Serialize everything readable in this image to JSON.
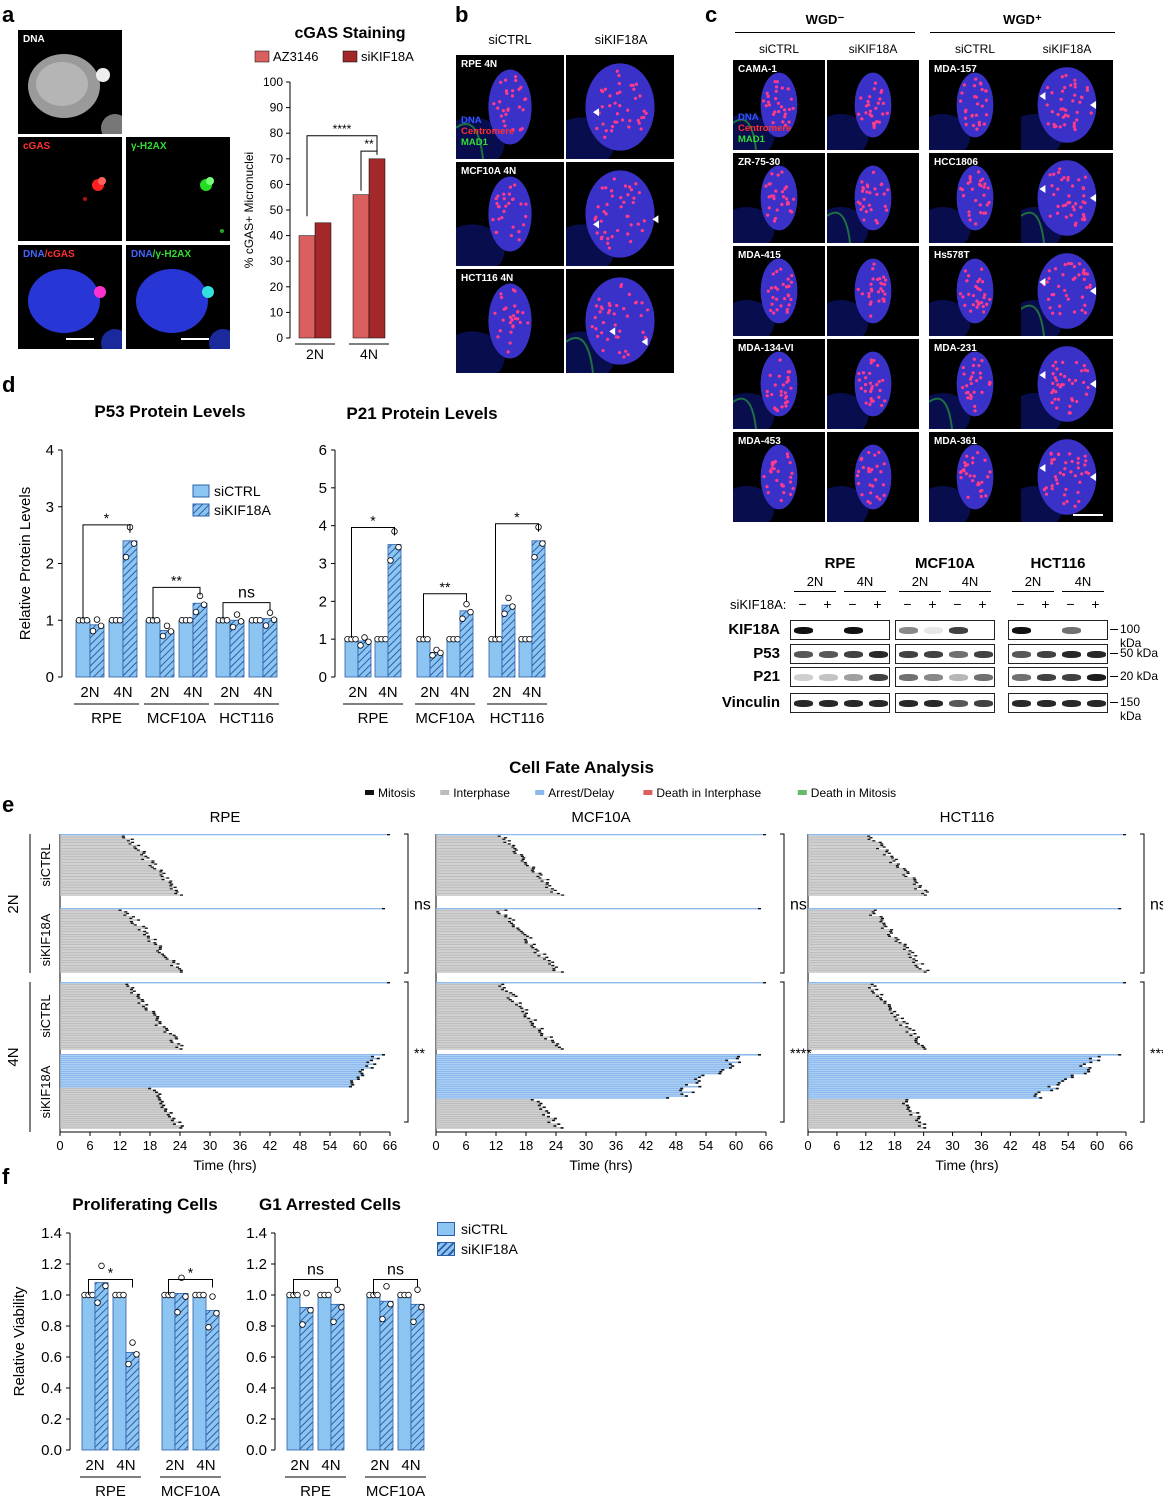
{
  "panel_letters": {
    "a": "a",
    "b": "b",
    "c": "c",
    "d": "d",
    "e": "e",
    "f": "f"
  },
  "panel_a": {
    "tiles": [
      {
        "label": "DNA",
        "color": "#ffffff"
      },
      {
        "label": "cGAS",
        "color": "#ff3030"
      },
      {
        "label": "γ-H2AX",
        "color": "#33dd33"
      },
      {
        "label_parts": [
          "DNA",
          "/cGAS"
        ],
        "colors": [
          "#3355ff",
          "#ff3030"
        ]
      },
      {
        "label_parts": [
          "DNA",
          "/γ-H2AX"
        ],
        "colors": [
          "#3355ff",
          "#33dd33"
        ]
      }
    ]
  },
  "panel_b": {
    "col_headers": [
      "siCTRL",
      "siKIF18A"
    ],
    "rows": [
      "RPE 4N",
      "MCF10A 4N",
      "HCT116 4N"
    ],
    "legend": [
      {
        "text": "DNA",
        "color": "#3355ff"
      },
      {
        "text": "Centromere",
        "color": "#ff3030"
      },
      {
        "text": "MAD1",
        "color": "#33dd33"
      }
    ]
  },
  "panel_c": {
    "group_headers": [
      "WGD⁻",
      "WGD⁺"
    ],
    "col_headers": [
      "siCTRL",
      "siKIF18A",
      "siCTRL",
      "siKIF18A"
    ],
    "rows_left": [
      "CAMA-1",
      "ZR-75-30",
      "MDA-415",
      "MDA-134-VI",
      "MDA-453"
    ],
    "rows_right": [
      "MDA-157",
      "HCC1806",
      "Hs578T",
      "MDA-231",
      "MDA-361"
    ],
    "legend": [
      {
        "text": "DNA",
        "color": "#3355ff"
      },
      {
        "text": "Centromere",
        "color": "#ff3030"
      },
      {
        "text": "MAD1",
        "color": "#33dd33"
      }
    ]
  },
  "chart_data": [
    {
      "id": "cgas",
      "type": "bar",
      "title": "cGAS Staining",
      "ylabel": "% cGAS+ Micronuclei",
      "categories": [
        "2N",
        "4N"
      ],
      "series": [
        {
          "name": "AZ3146",
          "values": [
            40,
            56
          ],
          "color": "#d9605e"
        },
        {
          "name": "siKIF18A",
          "values": [
            45,
            70
          ],
          "color": "#a3282a"
        }
      ],
      "ylim": [
        0,
        100
      ],
      "yticks": [
        0,
        10,
        20,
        30,
        40,
        50,
        60,
        70,
        80,
        90,
        100
      ],
      "significance": [
        "****",
        "**"
      ]
    },
    {
      "id": "p53",
      "type": "bar",
      "title": "P53 Protein Levels",
      "ylabel": "Relative Protein Levels",
      "groups": [
        "RPE",
        "MCF10A",
        "HCT116"
      ],
      "subcategories": [
        "2N",
        "4N"
      ],
      "series": [
        {
          "name": "siCTRL"
        },
        {
          "name": "siKIF18A"
        }
      ],
      "values": [
        [
          1,
          0.92,
          1,
          2.4
        ],
        [
          1,
          0.82,
          1,
          1.3
        ],
        [
          1,
          1.0,
          1,
          1.03
        ]
      ],
      "ylim": [
        0,
        4
      ],
      "yticks": [
        0,
        1,
        2,
        3,
        4
      ],
      "significance": [
        "*",
        "**",
        "ns"
      ]
    },
    {
      "id": "p21",
      "type": "bar",
      "title": "P21 Protein Levels",
      "groups": [
        "RPE",
        "MCF10A",
        "HCT116"
      ],
      "subcategories": [
        "2N",
        "4N"
      ],
      "series": [
        {
          "name": "siCTRL"
        },
        {
          "name": "siKIF18A"
        }
      ],
      "values": [
        [
          1,
          0.95,
          1,
          3.5
        ],
        [
          1,
          0.65,
          1,
          1.75
        ],
        [
          1,
          1.9,
          1,
          3.6
        ]
      ],
      "ylim": [
        0,
        6
      ],
      "yticks": [
        0,
        1,
        2,
        3,
        4,
        5,
        6
      ],
      "significance": [
        "*",
        "**",
        "*"
      ]
    },
    {
      "id": "cellfate",
      "type": "bar",
      "title": "Cell Fate Analysis",
      "legend": [
        {
          "name": "Mitosis",
          "color": "#111111"
        },
        {
          "name": "Interphase",
          "color": "#bdbdbd"
        },
        {
          "name": "Arrest/Delay",
          "color": "#8ab9ee"
        },
        {
          "name": "Death in Interphase",
          "color": "#de5d5d"
        },
        {
          "name": "Death in Mitosis",
          "color": "#66bb66"
        }
      ],
      "panels": [
        "RPE",
        "MCF10A",
        "HCT116"
      ],
      "row_groups": [
        "2N",
        "4N"
      ],
      "conditions": [
        "siCTRL",
        "siKIF18A"
      ],
      "xlabel": "Time (hrs)",
      "xticks": [
        0,
        6,
        12,
        18,
        24,
        30,
        36,
        42,
        48,
        54,
        60,
        66
      ],
      "significance_2N": [
        "ns",
        "ns",
        "ns"
      ],
      "significance_4N": [
        "**",
        "****",
        "****"
      ]
    },
    {
      "id": "prolif",
      "type": "bar",
      "title": "Proliferating Cells",
      "ylabel": "Relative Viability",
      "groups": [
        "RPE",
        "MCF10A"
      ],
      "subcategories": [
        "2N",
        "4N"
      ],
      "series": [
        {
          "name": "siCTRL"
        },
        {
          "name": "siKIF18A"
        }
      ],
      "values": [
        [
          1,
          1.08,
          1,
          0.63
        ],
        [
          1,
          1.01,
          1,
          0.9
        ]
      ],
      "ylim": [
        0,
        1.4
      ],
      "yticks": [
        "0.0",
        "0.2",
        "0.4",
        "0.6",
        "0.8",
        "1.0",
        "1.2",
        "1.4"
      ],
      "significance": [
        "*",
        "*"
      ]
    },
    {
      "id": "g1",
      "type": "bar",
      "title": "G1 Arrested Cells",
      "groups": [
        "RPE",
        "MCF10A"
      ],
      "subcategories": [
        "2N",
        "4N"
      ],
      "series": [
        {
          "name": "siCTRL"
        },
        {
          "name": "siKIF18A"
        }
      ],
      "values": [
        [
          1,
          0.92,
          1,
          0.94
        ],
        [
          1,
          0.96,
          1,
          0.94
        ]
      ],
      "ylim": [
        0,
        1.4
      ],
      "yticks": [
        "0.0",
        "0.2",
        "0.4",
        "0.6",
        "0.8",
        "1.0",
        "1.2",
        "1.4"
      ],
      "significance": [
        "ns",
        "ns"
      ]
    }
  ],
  "legend_d": {
    "items": [
      "siCTRL",
      "siKIF18A"
    ]
  },
  "legend_f": {
    "items": [
      "siCTRL",
      "siKIF18A"
    ]
  },
  "western": {
    "groups": [
      "RPE",
      "MCF10A",
      "HCT116"
    ],
    "ploidy": [
      "2N",
      "4N"
    ],
    "treatment_label": "siKIF18A:",
    "treatment_marks": [
      "−",
      "+",
      "−",
      "+"
    ],
    "rows": [
      "KIF18A",
      "P53",
      "P21",
      "Vinculin"
    ],
    "markers": [
      "100 kDa",
      "50 kDa",
      "20 kDa",
      "150 kDa"
    ]
  },
  "colors": {
    "siCTRL": "#8cc4f2",
    "siKIF18A_hatch": "#2d5fa8",
    "bar_edge": "#2d5fa8"
  }
}
